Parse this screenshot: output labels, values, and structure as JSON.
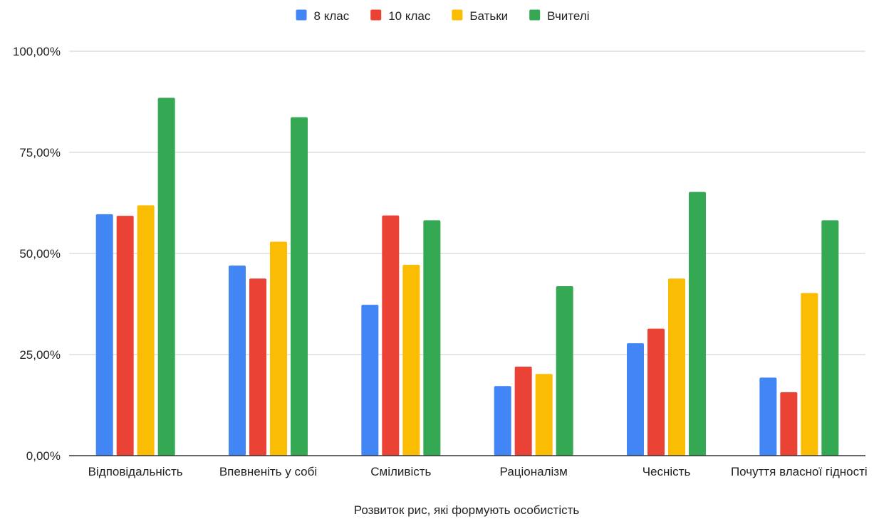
{
  "chart_data": {
    "type": "bar",
    "title": "",
    "xlabel": "Розвиток рис, які формують особистість",
    "ylabel": "",
    "ylim": [
      0,
      100
    ],
    "yticks": [
      "0,00%",
      "25,00%",
      "50,00%",
      "75,00%",
      "100,00%"
    ],
    "grid": true,
    "legend_position": "top",
    "categories": [
      "Відповідальність",
      "Впевненіть у собі",
      "Сміливість",
      "Раціоналізм",
      "Чесність",
      "Почуття власної гідності"
    ],
    "series": [
      {
        "name": "8 клас",
        "color": "#4285F4",
        "values": [
          59.7,
          47.0,
          37.3,
          17.2,
          27.8,
          19.3
        ]
      },
      {
        "name": "10 клас",
        "color": "#EA4335",
        "values": [
          59.3,
          43.8,
          59.4,
          22.0,
          31.4,
          15.7
        ]
      },
      {
        "name": "Батьки",
        "color": "#FBBC04",
        "values": [
          61.9,
          52.9,
          47.2,
          20.2,
          43.8,
          40.2
        ]
      },
      {
        "name": "Вчителі",
        "color": "#34A853",
        "values": [
          88.5,
          83.7,
          58.2,
          41.9,
          65.2,
          58.2
        ]
      }
    ]
  }
}
